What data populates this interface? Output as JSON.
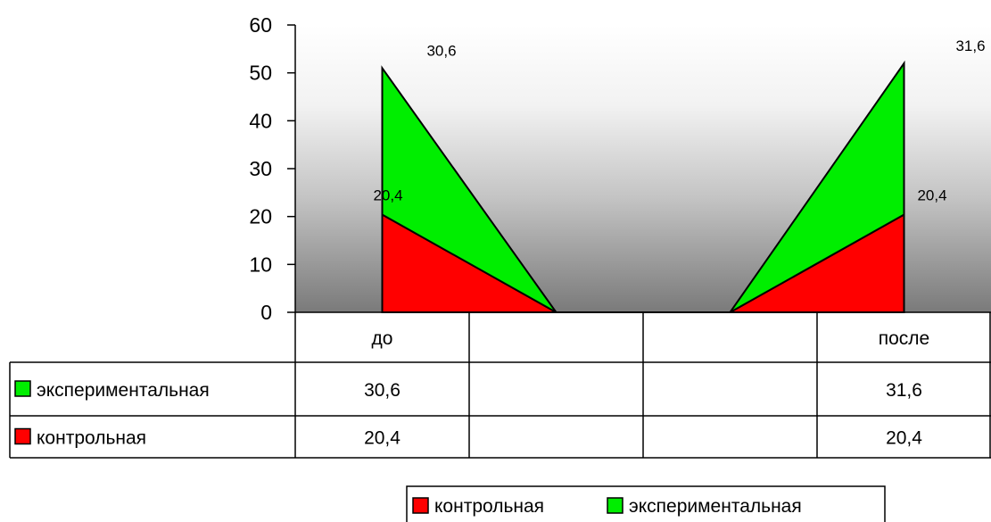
{
  "chart_data": {
    "type": "area",
    "categories": [
      "до",
      "",
      "",
      "после"
    ],
    "series": [
      {
        "name": "контрольная",
        "values": [
          20.4,
          0,
          0,
          20.4
        ],
        "color": "#ff0000"
      },
      {
        "name": "экспериментальная",
        "values": [
          30.6,
          0,
          0,
          31.6
        ],
        "color": "#00ee00"
      }
    ],
    "stacked": true,
    "ylim": [
      0,
      60
    ],
    "yticks": [
      "0",
      "10",
      "20",
      "30",
      "40",
      "50",
      "60"
    ],
    "data_labels": {
      "контрольная": [
        "20,4",
        "",
        "",
        "20,4"
      ],
      "экспериментальная": [
        "30,6",
        "",
        "",
        "31,6"
      ]
    },
    "data_table": {
      "rows": [
        {
          "label": "экспериментальная",
          "cells": [
            "30,6",
            "",
            "",
            "31,6"
          ],
          "color": "#00ee00"
        },
        {
          "label": "контрольная",
          "cells": [
            "20,4",
            "",
            "",
            "20,4"
          ],
          "color": "#ff0000"
        }
      ]
    },
    "legend": {
      "position": "bottom-right",
      "entries": [
        {
          "label": "контрольная",
          "color": "#ff0000"
        },
        {
          "label": "экспериментальная",
          "color": "#00ee00"
        }
      ]
    },
    "background": "gradient white-to-gray",
    "grid": false
  }
}
